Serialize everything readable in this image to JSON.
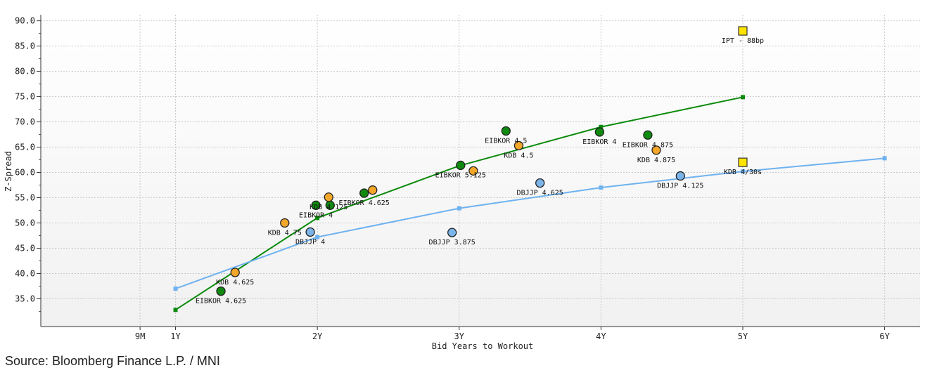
{
  "chart_data": {
    "type": "scatter",
    "title": "",
    "xlabel": "Bid Years to Workout",
    "ylabel": "Z-Spread",
    "xlim": [
      0.05,
      6.25
    ],
    "ylim": [
      29.5,
      91.2
    ],
    "x_ticks": [
      {
        "value": 0.75,
        "label": "9M"
      },
      {
        "value": 1,
        "label": "1Y"
      },
      {
        "value": 2,
        "label": "2Y"
      },
      {
        "value": 3,
        "label": "3Y"
      },
      {
        "value": 4,
        "label": "4Y"
      },
      {
        "value": 5,
        "label": "5Y"
      },
      {
        "value": 6,
        "label": "6Y"
      }
    ],
    "y_ticks": [
      35.0,
      40.0,
      45.0,
      50.0,
      55.0,
      60.0,
      65.0,
      70.0,
      75.0,
      80.0,
      85.0,
      90.0
    ],
    "y_tick_labels": [
      "35.0",
      "40.0",
      "45.0",
      "50.0",
      "55.0",
      "60.0",
      "65.0",
      "70.0",
      "75.0",
      "80.0",
      "85.0",
      "90.0"
    ],
    "grid": true,
    "colors": {
      "eibkor": "#0f8a0f",
      "kdb": "#f2a62a",
      "dbjjp": "#7ab4e8",
      "ipt": "#ffe400",
      "green_curve": "#0a8a0a",
      "blue_curve": "#6eb2f0"
    },
    "curves": [
      {
        "name": "green-curve",
        "color_key": "green_curve",
        "x": [
          1,
          2,
          3,
          4,
          5
        ],
        "y": [
          32.8,
          51.0,
          61.3,
          69.0,
          74.9
        ]
      },
      {
        "name": "blue-curve",
        "color_key": "blue_curve",
        "x": [
          1,
          2,
          3,
          4,
          5,
          6
        ],
        "y": [
          37.0,
          47.2,
          52.9,
          57.0,
          60.2,
          62.8
        ]
      }
    ],
    "series": [
      {
        "name": "EIBKOR",
        "color_key": "eibkor",
        "shape": "circle",
        "points": [
          {
            "x": 1.32,
            "y": 36.5,
            "label": "EIBKOR 4.625",
            "lx": 0,
            "ly": 12
          },
          {
            "x": 1.99,
            "y": 53.5,
            "label": "EIBKOR 4",
            "lx": 0,
            "ly": 12
          },
          {
            "x": 2.09,
            "y": 53.5,
            "label": "",
            "lx": 0,
            "ly": 0
          },
          {
            "x": 2.33,
            "y": 55.9,
            "label": "EIBKOR 4.625",
            "lx": 0,
            "ly": 12
          },
          {
            "x": 3.01,
            "y": 61.4,
            "label": "EIBKOR 5.125",
            "lx": 0,
            "ly": 12
          },
          {
            "x": 3.33,
            "y": 68.2,
            "label": "EIBKOR 4.5",
            "lx": 0,
            "ly": 12
          },
          {
            "x": 3.99,
            "y": 68.0,
            "label": "EIBKOR 4",
            "lx": 0,
            "ly": 12
          },
          {
            "x": 4.33,
            "y": 67.4,
            "label": "EIBKOR 4.875",
            "lx": 0,
            "ly": 12
          }
        ]
      },
      {
        "name": "KDB",
        "color_key": "kdb",
        "shape": "circle",
        "points": [
          {
            "x": 1.42,
            "y": 40.2,
            "label": "KDB 4.625",
            "lx": 0,
            "ly": 12
          },
          {
            "x": 1.77,
            "y": 50.0,
            "label": "KDB 4.75",
            "lx": 0,
            "ly": 12
          },
          {
            "x": 2.08,
            "y": 55.1,
            "label": "KDB 4.125",
            "lx": 0,
            "ly": 12
          },
          {
            "x": 2.39,
            "y": 56.5,
            "label": "",
            "lx": 0,
            "ly": 0
          },
          {
            "x": 3.1,
            "y": 60.3,
            "label": "",
            "lx": 0,
            "ly": 0
          },
          {
            "x": 3.42,
            "y": 65.3,
            "label": "KDB 4.5",
            "lx": 0,
            "ly": 12
          },
          {
            "x": 4.39,
            "y": 64.4,
            "label": "KDB 4.875",
            "lx": 0,
            "ly": 12
          }
        ]
      },
      {
        "name": "DBJJP",
        "color_key": "dbjjp",
        "shape": "circle",
        "points": [
          {
            "x": 1.95,
            "y": 48.2,
            "label": "DBJJP 4",
            "lx": 0,
            "ly": 12
          },
          {
            "x": 2.95,
            "y": 48.1,
            "label": "DBJJP 3.875",
            "lx": 0,
            "ly": 12
          },
          {
            "x": 3.57,
            "y": 57.9,
            "label": "DBJJP 4.625",
            "lx": 0,
            "ly": 12
          },
          {
            "x": 4.56,
            "y": 59.3,
            "label": "DBJJP 4.125",
            "lx": 0,
            "ly": 12
          }
        ]
      },
      {
        "name": "IPT",
        "color_key": "ipt",
        "shape": "square",
        "points": [
          {
            "x": 5.0,
            "y": 88.0,
            "label": "IPT - 88bp",
            "lx": 0,
            "ly": 12
          },
          {
            "x": 5.0,
            "y": 62.0,
            "label": "KDB 4/30s",
            "lx": 0,
            "ly": 12
          }
        ]
      }
    ]
  },
  "source_text": "Source: Bloomberg Finance L.P. / MNI"
}
